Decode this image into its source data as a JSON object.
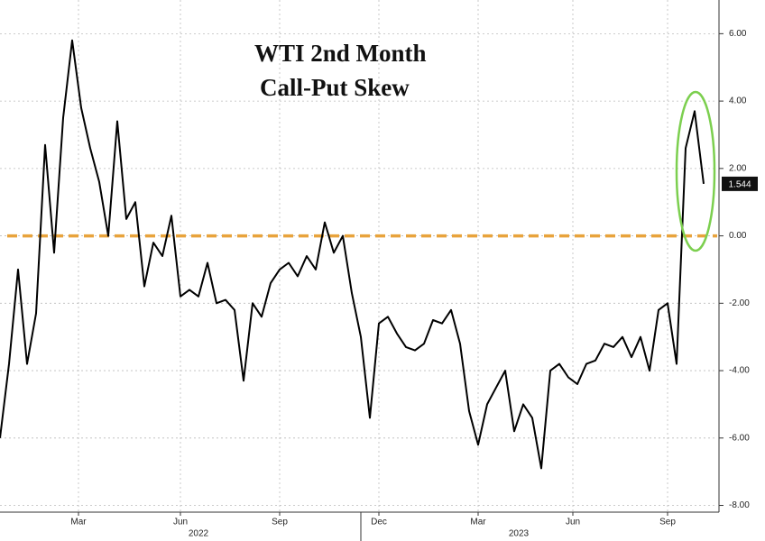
{
  "chart_data": {
    "type": "line",
    "title": [
      "WTI 2nd Month",
      "Call-Put Skew"
    ],
    "series": [
      {
        "name": "WTI 2nd Month Call-Put Skew",
        "color": "#000000",
        "values": [
          -6.0,
          -3.8,
          -1.0,
          -3.8,
          -2.3,
          2.7,
          -0.5,
          3.5,
          5.8,
          3.8,
          2.6,
          1.6,
          0.0,
          3.4,
          0.5,
          1.0,
          -1.5,
          -0.2,
          -0.6,
          0.6,
          -1.8,
          -1.6,
          -1.8,
          -0.8,
          -2.0,
          -1.9,
          -2.2,
          -4.3,
          -2.0,
          -2.4,
          -1.4,
          -1.0,
          -0.8,
          -1.2,
          -0.6,
          -1.0,
          0.4,
          -0.5,
          0.0,
          -1.7,
          -3.0,
          -5.4,
          -2.6,
          -2.4,
          -2.9,
          -3.3,
          -3.4,
          -3.2,
          -2.5,
          -2.6,
          -2.2,
          -3.2,
          -5.2,
          -6.2,
          -5.0,
          -4.5,
          -4.0,
          -5.8,
          -5.0,
          -5.4,
          -6.9,
          -4.0,
          -3.8,
          -4.2,
          -4.4,
          -3.8,
          -3.7,
          -3.2,
          -3.3,
          -3.0,
          -3.6,
          -3.0,
          -4.0,
          -2.2,
          -2.0,
          -3.8,
          2.6,
          3.7,
          1.544
        ]
      }
    ],
    "xlim": [
      0,
      79.5
    ],
    "xticks": [
      {
        "value": 8.7,
        "label": "Mar"
      },
      {
        "value": 20,
        "label": "Jun"
      },
      {
        "value": 31,
        "label": "Sep"
      },
      {
        "value": 42,
        "label": "Dec"
      },
      {
        "value": 53,
        "label": "Mar"
      },
      {
        "value": 63.5,
        "label": "Jun"
      },
      {
        "value": 74,
        "label": "Sep"
      }
    ],
    "years": [
      {
        "value": 22,
        "label": "2022"
      },
      {
        "value": 57.5,
        "label": "2023"
      }
    ],
    "ylim": [
      -8.2,
      7.0
    ],
    "yticks": [
      {
        "value": 6,
        "label": "6.00"
      },
      {
        "value": 4,
        "label": "4.00"
      },
      {
        "value": 2,
        "label": "2.00"
      },
      {
        "value": 0,
        "label": "0.00"
      },
      {
        "value": -2,
        "label": "-2.00"
      },
      {
        "value": -4,
        "label": "-4.00"
      },
      {
        "value": -6,
        "label": "-6.00"
      },
      {
        "value": -8,
        "label": "-8.00"
      }
    ],
    "hline": {
      "value": 0,
      "color": "#e8a33c"
    },
    "grid": true
  }
}
